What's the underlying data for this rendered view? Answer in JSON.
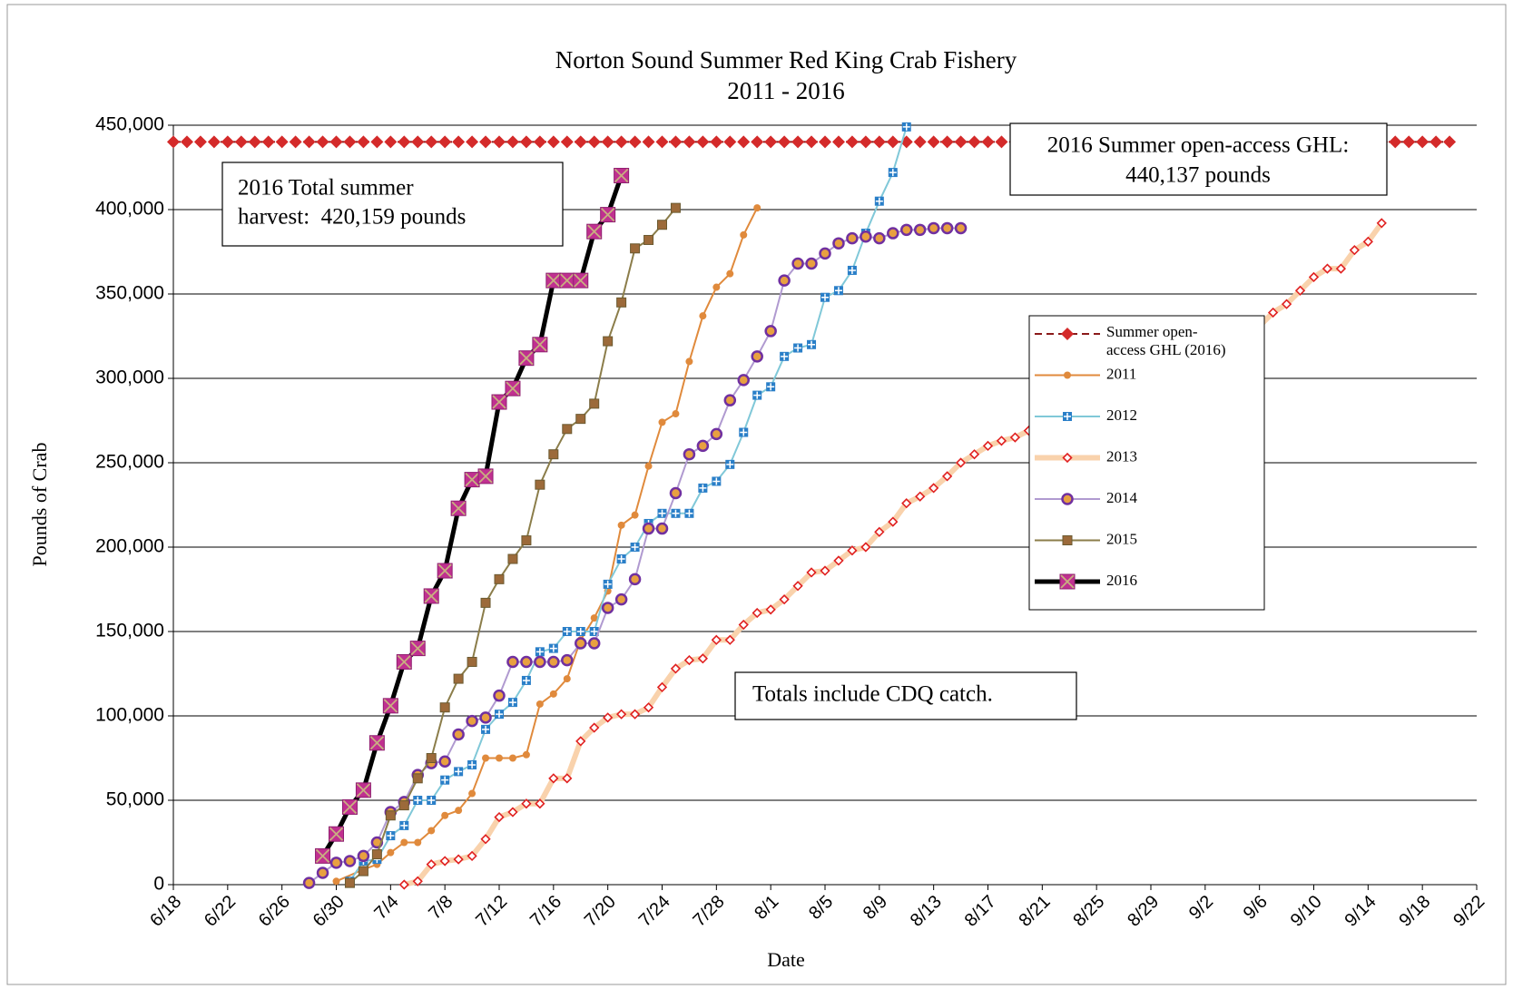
{
  "chart_data": {
    "type": "line",
    "title": "Norton Sound Summer Red King Crab Fishery",
    "subtitle": "2011 - 2016",
    "y_label": "Pounds of Crab",
    "x_label": "Date",
    "xlim": [
      "6/18",
      "9/22"
    ],
    "xticks": [
      "6/18",
      "6/22",
      "6/26",
      "6/30",
      "7/4",
      "7/8",
      "7/12",
      "7/16",
      "7/20",
      "7/24",
      "7/28",
      "8/1",
      "8/5",
      "8/9",
      "8/13",
      "8/17",
      "8/21",
      "8/25",
      "8/29",
      "9/2",
      "9/6",
      "9/10",
      "9/14",
      "9/18",
      "9/22"
    ],
    "ylim": [
      0,
      450000
    ],
    "yticks": [
      0,
      {
        "value": 50000,
        "label": "50,000"
      },
      {
        "value": 100000,
        "label": "100,000"
      },
      {
        "value": 150000,
        "label": "150,000"
      },
      {
        "value": 200000,
        "label": "200,000"
      },
      {
        "value": 250000,
        "label": "250,000"
      },
      {
        "value": 300000,
        "label": "300,000"
      },
      {
        "value": 350000,
        "label": "350,000"
      },
      {
        "value": 400000,
        "label": "400,000"
      },
      {
        "value": 450000,
        "label": "450,000"
      }
    ],
    "grid": true,
    "annotations": [
      {
        "text": [
          "2016 Total summer",
          "harvest:  420,159 pounds"
        ]
      },
      {
        "text": [
          "2016 Summer open-access GHL:",
          "440,137 pounds"
        ]
      },
      {
        "text": [
          "Totals include CDQ catch."
        ]
      }
    ],
    "series": [
      {
        "name": "Summer open-access GHL (2016)",
        "color": "#8b1a1a",
        "marker_color": "#d42a2a",
        "marker": "diamond",
        "dash": true,
        "width": 2,
        "x": [
          "6/18",
          "6/19",
          "6/20",
          "6/21",
          "6/22",
          "6/23",
          "6/24",
          "6/25",
          "6/26",
          "6/27",
          "6/28",
          "6/29",
          "6/30",
          "7/1",
          "7/2",
          "7/3",
          "7/4",
          "7/5",
          "7/6",
          "7/7",
          "7/8",
          "7/9",
          "7/10",
          "7/11",
          "7/12",
          "7/13",
          "7/14",
          "7/15",
          "7/16",
          "7/17",
          "7/18",
          "7/19",
          "7/20",
          "7/21",
          "7/22",
          "7/23",
          "7/24",
          "7/25",
          "7/26",
          "7/27",
          "7/28",
          "7/29",
          "7/30",
          "7/31",
          "8/1",
          "8/2",
          "8/3",
          "8/4",
          "8/5",
          "8/6",
          "8/7",
          "8/8",
          "8/9",
          "8/10",
          "8/11",
          "8/12",
          "8/13",
          "8/14",
          "8/15",
          "8/16",
          "8/17",
          "8/18",
          "8/19",
          "8/20",
          "8/21",
          "8/22",
          "8/23",
          "8/24",
          "8/25",
          "8/26",
          "8/27",
          "8/28",
          "8/29",
          "8/30",
          "8/31",
          "9/1",
          "9/2",
          "9/3",
          "9/4",
          "9/5",
          "9/6",
          "9/7",
          "9/8",
          "9/9",
          "9/10",
          "9/11",
          "9/12",
          "9/13",
          "9/14",
          "9/15",
          "9/16",
          "9/17",
          "9/18",
          "9/19",
          "9/20"
        ],
        "values": [
          440137,
          440137,
          440137,
          440137,
          440137,
          440137,
          440137,
          440137,
          440137,
          440137,
          440137,
          440137,
          440137,
          440137,
          440137,
          440137,
          440137,
          440137,
          440137,
          440137,
          440137,
          440137,
          440137,
          440137,
          440137,
          440137,
          440137,
          440137,
          440137,
          440137,
          440137,
          440137,
          440137,
          440137,
          440137,
          440137,
          440137,
          440137,
          440137,
          440137,
          440137,
          440137,
          440137,
          440137,
          440137,
          440137,
          440137,
          440137,
          440137,
          440137,
          440137,
          440137,
          440137,
          440137,
          440137,
          440137,
          440137,
          440137,
          440137,
          440137,
          440137,
          440137,
          440137,
          440137,
          440137,
          440137,
          440137,
          440137,
          440137,
          440137,
          440137,
          440137,
          440137,
          440137,
          440137,
          440137,
          440137,
          440137,
          440137,
          440137,
          440137,
          440137,
          440137,
          440137,
          440137,
          440137,
          440137,
          440137,
          440137,
          440137,
          440137,
          440137,
          440137,
          440137,
          440137
        ]
      },
      {
        "name": "2011",
        "color": "#e08a3c",
        "marker_color": "#e08a3c",
        "marker": "circle-small",
        "width": 2,
        "x": [
          "6/30",
          "7/2",
          "7/3",
          "7/4",
          "7/5",
          "7/6",
          "7/7",
          "7/8",
          "7/9",
          "7/10",
          "7/11",
          "7/12",
          "7/13",
          "7/14",
          "7/15",
          "7/16",
          "7/17",
          "7/18",
          "7/19",
          "7/20",
          "7/21",
          "7/22",
          "7/23",
          "7/24",
          "7/25",
          "7/26",
          "7/27",
          "7/28",
          "7/29",
          "7/30",
          "7/31"
        ],
        "values": [
          2000,
          9000,
          12000,
          19000,
          25000,
          25000,
          32000,
          41000,
          44000,
          54000,
          75000,
          75000,
          75000,
          77000,
          107000,
          113000,
          122000,
          145000,
          158000,
          174000,
          213000,
          219000,
          248000,
          274000,
          279000,
          310000,
          337000,
          354000,
          362000,
          385000,
          401000
        ]
      },
      {
        "name": "2012",
        "color": "#80c8d8",
        "marker_color": "#2a7fc8",
        "marker": "square-plus",
        "width": 2,
        "x": [
          "7/1",
          "7/2",
          "7/3",
          "7/4",
          "7/5",
          "7/6",
          "7/7",
          "7/8",
          "7/9",
          "7/10",
          "7/11",
          "7/12",
          "7/13",
          "7/14",
          "7/15",
          "7/16",
          "7/17",
          "7/18",
          "7/19",
          "7/20",
          "7/21",
          "7/22",
          "7/23",
          "7/24",
          "7/25",
          "7/26",
          "7/27",
          "7/28",
          "7/29",
          "7/30",
          "7/31",
          "8/1",
          "8/2",
          "8/3",
          "8/4",
          "8/5",
          "8/6",
          "8/7",
          "8/8",
          "8/9",
          "8/10",
          "8/11"
        ],
        "values": [
          2000,
          14000,
          15000,
          29000,
          35000,
          50000,
          50000,
          62000,
          67000,
          71000,
          92000,
          101000,
          108000,
          121000,
          138000,
          140000,
          150000,
          150000,
          150000,
          178000,
          193000,
          200000,
          214000,
          220000,
          220000,
          220000,
          235000,
          239000,
          249000,
          268000,
          290000,
          295000,
          313000,
          318000,
          320000,
          348000,
          352000,
          364000,
          386000,
          405000,
          422000,
          449000
        ]
      },
      {
        "name": "2013",
        "color": "#f9d2ac",
        "marker_color": "#e02020",
        "marker": "diamond-open",
        "width": 6,
        "x": [
          "7/5",
          "7/6",
          "7/7",
          "7/8",
          "7/9",
          "7/10",
          "7/11",
          "7/12",
          "7/13",
          "7/14",
          "7/15",
          "7/16",
          "7/17",
          "7/18",
          "7/19",
          "7/20",
          "7/21",
          "7/22",
          "7/23",
          "7/24",
          "7/25",
          "7/26",
          "7/27",
          "7/28",
          "7/29",
          "7/30",
          "7/31",
          "8/1",
          "8/2",
          "8/3",
          "8/4",
          "8/5",
          "8/6",
          "8/7",
          "8/8",
          "8/9",
          "8/10",
          "8/11",
          "8/12",
          "8/13",
          "8/14",
          "8/15",
          "8/16",
          "8/17",
          "8/18",
          "8/19",
          "8/20",
          "8/21",
          "8/22",
          "8/23",
          "8/24",
          "8/25",
          "8/26",
          "8/27",
          "8/28",
          "8/29",
          "8/30",
          "8/31",
          "9/1",
          "9/2",
          "9/3",
          "9/4",
          "9/5",
          "9/6",
          "9/7",
          "9/8",
          "9/9",
          "9/10",
          "9/11",
          "9/12",
          "9/13",
          "9/14",
          "9/15"
        ],
        "values": [
          0,
          2000,
          12000,
          14000,
          15000,
          17000,
          27000,
          40000,
          43000,
          48000,
          48000,
          63000,
          63000,
          85000,
          93000,
          99000,
          101000,
          101000,
          105000,
          117000,
          128000,
          133000,
          134000,
          145000,
          145000,
          154000,
          161000,
          163000,
          169000,
          177000,
          185000,
          186000,
          192000,
          198000,
          200000,
          209000,
          215000,
          226000,
          230000,
          235000,
          242000,
          250000,
          255000,
          260000,
          263000,
          265000,
          269000,
          273000,
          277000,
          281000,
          285000,
          289000,
          293000,
          297000,
          300000,
          304000,
          308000,
          312000,
          316000,
          319000,
          323000,
          327000,
          329000,
          331000,
          339000,
          344000,
          352000,
          360000,
          365000,
          365000,
          376000,
          381000,
          392000
        ]
      },
      {
        "name": "2014",
        "color": "#b09ad0",
        "marker_color": "#7030a0",
        "marker": "circle",
        "width": 2,
        "x": [
          "6/28",
          "6/29",
          "6/30",
          "7/1",
          "7/2",
          "7/3",
          "7/4",
          "7/5",
          "7/6",
          "7/7",
          "7/8",
          "7/9",
          "7/10",
          "7/11",
          "7/12",
          "7/13",
          "7/14",
          "7/15",
          "7/16",
          "7/17",
          "7/18",
          "7/19",
          "7/20",
          "7/21",
          "7/22",
          "7/23",
          "7/24",
          "7/25",
          "7/26",
          "7/27",
          "7/28",
          "7/29",
          "7/30",
          "7/31",
          "8/1",
          "8/2",
          "8/3",
          "8/4",
          "8/5",
          "8/6",
          "8/7",
          "8/8",
          "8/9",
          "8/10",
          "8/11",
          "8/12",
          "8/13",
          "8/14",
          "8/15"
        ],
        "values": [
          1000,
          7000,
          13000,
          14000,
          17000,
          25000,
          43000,
          49000,
          65000,
          72000,
          73000,
          89000,
          97000,
          99000,
          112000,
          132000,
          132000,
          132000,
          132000,
          133000,
          143000,
          143000,
          164000,
          169000,
          181000,
          211000,
          211000,
          232000,
          255000,
          260000,
          267000,
          287000,
          299000,
          313000,
          328000,
          358000,
          368000,
          368000,
          374000,
          380000,
          383000,
          384000,
          383000,
          386000,
          388000,
          388000,
          389000,
          389000,
          389000
        ]
      },
      {
        "name": "2015",
        "color": "#8b7d4a",
        "marker_color": "#9c6a3a",
        "marker": "square",
        "width": 2,
        "x": [
          "7/1",
          "7/2",
          "7/3",
          "7/4",
          "7/5",
          "7/6",
          "7/7",
          "7/8",
          "7/9",
          "7/10",
          "7/11",
          "7/12",
          "7/13",
          "7/14",
          "7/15",
          "7/16",
          "7/17",
          "7/18",
          "7/19",
          "7/20",
          "7/21",
          "7/22",
          "7/23",
          "7/24",
          "7/25"
        ],
        "values": [
          1000,
          8000,
          18000,
          41000,
          47000,
          63000,
          75000,
          105000,
          122000,
          132000,
          167000,
          181000,
          193000,
          204000,
          237000,
          255000,
          270000,
          276000,
          285000,
          322000,
          345000,
          377000,
          382000,
          391000,
          401000
        ]
      },
      {
        "name": "2016",
        "color": "#000000",
        "marker_color": "#c03090",
        "marker": "square-x",
        "width": 5,
        "x": [
          "6/29",
          "6/30",
          "7/1",
          "7/2",
          "7/3",
          "7/4",
          "7/5",
          "7/6",
          "7/7",
          "7/8",
          "7/9",
          "7/10",
          "7/11",
          "7/12",
          "7/13",
          "7/14",
          "7/15",
          "7/16",
          "7/17",
          "7/18",
          "7/19",
          "7/20",
          "7/21"
        ],
        "values": [
          17000,
          30000,
          46000,
          56000,
          84000,
          106000,
          132000,
          140000,
          171000,
          186000,
          223000,
          240000,
          242000,
          286000,
          294000,
          312000,
          320000,
          358000,
          358000,
          358000,
          387000,
          397000,
          420159
        ]
      }
    ]
  }
}
